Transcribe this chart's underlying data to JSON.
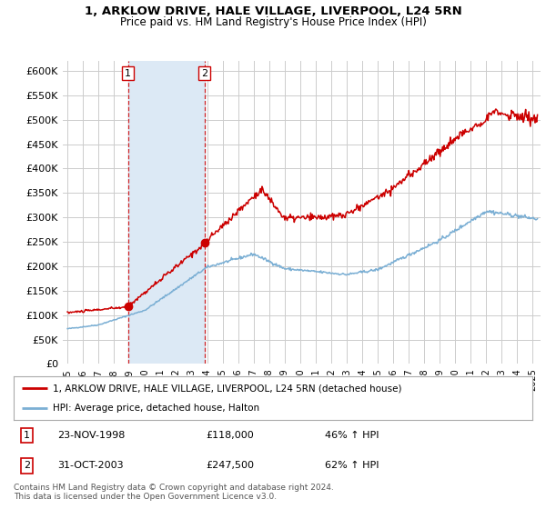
{
  "title": "1, ARKLOW DRIVE, HALE VILLAGE, LIVERPOOL, L24 5RN",
  "subtitle": "Price paid vs. HM Land Registry's House Price Index (HPI)",
  "ytick_values": [
    0,
    50000,
    100000,
    150000,
    200000,
    250000,
    300000,
    350000,
    400000,
    450000,
    500000,
    550000,
    600000
  ],
  "hpi_color": "#7bafd4",
  "price_color": "#cc0000",
  "shade_color": "#dce9f5",
  "bg_color": "#ffffff",
  "grid_color": "#cccccc",
  "transaction1": {
    "label": "1",
    "date": "23-NOV-1998",
    "price": 118000,
    "hpi_change": "46% ↑ HPI",
    "x": 1998.9
  },
  "transaction2": {
    "label": "2",
    "date": "31-OCT-2003",
    "price": 247500,
    "hpi_change": "62% ↑ HPI",
    "x": 2003.83
  },
  "legend_line1": "1, ARKLOW DRIVE, HALE VILLAGE, LIVERPOOL, L24 5RN (detached house)",
  "legend_line2": "HPI: Average price, detached house, Halton",
  "footnote": "Contains HM Land Registry data © Crown copyright and database right 2024.\nThis data is licensed under the Open Government Licence v3.0.",
  "xmin": 1994.7,
  "xmax": 2025.5,
  "ymin": 0,
  "ymax": 620000
}
